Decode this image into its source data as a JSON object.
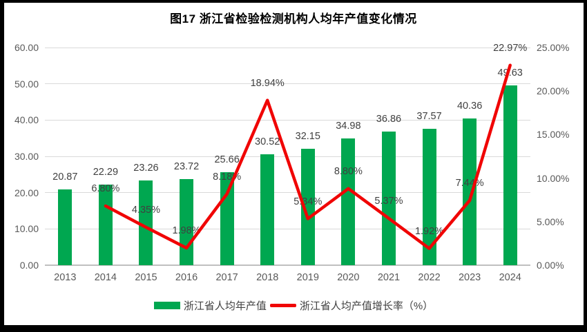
{
  "title": "图17  浙江省检验检测机构人均年产值变化情况",
  "legend": {
    "bar_label": "浙江省人均年产值",
    "line_label": "浙江省人均产值增长率（%）"
  },
  "colors": {
    "bar": "#00A750",
    "line": "#F00505",
    "grid": "#D9D9D9",
    "axis_line": "#BFBFBF",
    "tick_text": "#595959",
    "data_label_text": "#404040",
    "title_text": "#000000",
    "frame": "#000000",
    "background": "#FFFFFF"
  },
  "chart_data": {
    "type": "bar",
    "subtype": "combo-bar-line",
    "title": "图17  浙江省检验检测机构人均年产值变化情况",
    "categories": [
      "2013",
      "2014",
      "2015",
      "2016",
      "2017",
      "2018",
      "2019",
      "2020",
      "2021",
      "2022",
      "2023",
      "2024"
    ],
    "series": [
      {
        "name": "浙江省人均年产值",
        "type": "bar",
        "axis": "left",
        "values": [
          20.87,
          22.29,
          23.26,
          23.72,
          25.66,
          30.52,
          32.15,
          34.98,
          36.86,
          37.57,
          40.36,
          49.63
        ],
        "data_labels": [
          "20.87",
          "22.29",
          "23.26",
          "23.72",
          "25.66",
          "30.52",
          "32.15",
          "34.98",
          "36.86",
          "37.57",
          "40.36",
          "49.63"
        ]
      },
      {
        "name": "浙江省人均产值增长率（%）",
        "type": "line",
        "axis": "right",
        "values": [
          null,
          6.8,
          4.35,
          1.98,
          8.18,
          18.94,
          5.34,
          8.8,
          5.37,
          1.92,
          7.44,
          22.97
        ],
        "data_labels": [
          null,
          "6.80%",
          "4.35%",
          "1.98%",
          "8.18%",
          "18.94%",
          "5.34%",
          "8.80%",
          "5.37%",
          "1.92%",
          "7.44%",
          "22.97%"
        ]
      }
    ],
    "left_axis": {
      "min": 0,
      "max": 60,
      "step": 10,
      "ticks": [
        "0.00",
        "10.00",
        "20.00",
        "30.00",
        "40.00",
        "50.00",
        "60.00"
      ]
    },
    "right_axis": {
      "min": 0,
      "max": 25,
      "step": 5,
      "ticks": [
        "0.00%",
        "5.00%",
        "10.00%",
        "15.00%",
        "20.00%",
        "25.00%"
      ]
    },
    "grid": true,
    "legend_position": "bottom"
  }
}
